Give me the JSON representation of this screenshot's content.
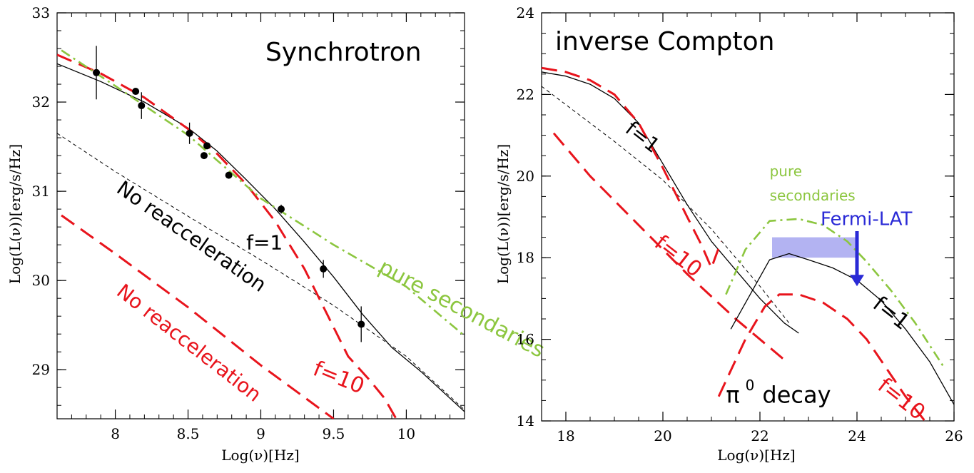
{
  "colors": {
    "black": "#000000",
    "red": "#e8141c",
    "green": "#8cc63f",
    "blue": "#2a2ad6",
    "band": "#b3b3f2"
  },
  "chart_data": [
    {
      "type": "line",
      "title": "Synchrotron",
      "xlabel": "Log(ν)[Hz]",
      "ylabel": "Log(L(ν))[erg/s/Hz]",
      "xlim": [
        7.6,
        10.4
      ],
      "ylim": [
        28.45,
        33.0
      ],
      "xticks": [
        "8",
        "8.5",
        "9",
        "9.5",
        "10"
      ],
      "yticks": [
        "29",
        "30",
        "31",
        "32",
        "33"
      ],
      "grid": false,
      "series": [
        {
          "name": "",
          "style": "solid",
          "color": "black",
          "x": [
            7.6,
            7.9,
            8.2,
            8.5,
            8.7,
            8.9,
            9.1,
            9.3,
            9.5,
            9.7,
            9.9,
            10.1,
            10.4
          ],
          "y": [
            32.43,
            32.23,
            32.0,
            31.71,
            31.45,
            31.13,
            30.8,
            30.43,
            30.04,
            29.62,
            29.25,
            28.98,
            28.53
          ]
        },
        {
          "name": "",
          "style": "short-dash",
          "color": "black",
          "x": [
            7.6,
            8.0,
            8.5,
            9.0,
            9.5,
            10.0,
            10.4
          ],
          "y": [
            31.65,
            31.22,
            30.72,
            30.23,
            29.72,
            29.15,
            28.55
          ]
        },
        {
          "name": "",
          "style": "long-dash",
          "color": "red",
          "x": [
            7.6,
            7.9,
            8.2,
            8.5,
            8.7,
            8.9,
            9.1,
            9.3,
            9.45,
            9.6,
            9.75,
            9.85,
            9.93
          ],
          "y": [
            32.53,
            32.32,
            32.05,
            31.7,
            31.42,
            31.08,
            30.66,
            30.13,
            29.64,
            29.15,
            28.88,
            28.68,
            28.45
          ]
        },
        {
          "name": "",
          "style": "long-dash",
          "color": "red",
          "x": [
            7.63,
            8.0,
            8.5,
            9.0,
            9.5
          ],
          "y": [
            30.73,
            30.3,
            29.7,
            29.05,
            28.45
          ]
        },
        {
          "name": "",
          "style": "dash-dot",
          "color": "green",
          "x": [
            7.63,
            8.0,
            8.5,
            9.0,
            9.5,
            10.0,
            10.4
          ],
          "y": [
            32.58,
            32.18,
            31.63,
            30.92,
            30.4,
            29.93,
            29.38
          ]
        }
      ],
      "data_points": {
        "x": [
          7.87,
          8.14,
          8.18,
          8.51,
          8.61,
          8.63,
          8.78,
          9.14,
          9.43,
          9.69
        ],
        "y": [
          32.33,
          32.12,
          31.96,
          31.65,
          31.4,
          31.51,
          31.18,
          30.8,
          30.13,
          29.51
        ],
        "yerr": [
          0.3,
          0.0,
          0.15,
          0.12,
          0.0,
          0.0,
          0.0,
          0.05,
          0.1,
          0.2
        ]
      },
      "annotations": [
        {
          "text": "No reacceleration",
          "color": "black",
          "x": 8.0,
          "y": 31.0
        },
        {
          "text": "f=1",
          "color": "black",
          "x": 8.9,
          "y": 30.35
        },
        {
          "text": "pure secondaries",
          "color": "green",
          "x": 9.8,
          "y": 30.1
        },
        {
          "text": "No reacceleration",
          "color": "red",
          "x": 8.0,
          "y": 29.85
        },
        {
          "text": "f=10",
          "color": "red",
          "x": 9.35,
          "y": 28.95
        }
      ]
    },
    {
      "type": "line",
      "title": "inverse Compton",
      "xlabel": "Log(ν)[Hz]",
      "ylabel": "Log(L(ν))[erg/s/Hz]",
      "xlim": [
        17.5,
        26.0
      ],
      "ylim": [
        14.0,
        24.0
      ],
      "xticks": [
        "18",
        "20",
        "22",
        "24",
        "26"
      ],
      "yticks": [
        "14",
        "16",
        "18",
        "20",
        "22",
        "24"
      ],
      "grid": false,
      "series": [
        {
          "name": "",
          "style": "solid",
          "color": "black",
          "x": [
            17.5,
            18.0,
            18.5,
            19.0,
            19.5,
            20.0,
            20.5,
            21.0,
            21.5,
            22.0,
            22.5,
            22.8
          ],
          "y": [
            22.55,
            22.45,
            22.25,
            21.9,
            21.3,
            20.3,
            19.3,
            18.4,
            17.7,
            17.0,
            16.4,
            16.15
          ]
        },
        {
          "name": "",
          "style": "short-dash",
          "color": "black",
          "x": [
            17.5,
            19.0,
            20.0,
            21.0,
            22.0,
            22.6
          ],
          "y": [
            22.2,
            20.85,
            19.9,
            18.7,
            17.3,
            16.4
          ]
        },
        {
          "name": "",
          "style": "long-dash",
          "color": "red",
          "x": [
            17.5,
            18.0,
            18.5,
            19.0,
            19.5,
            20.0,
            20.5,
            20.8,
            21.0,
            21.2
          ],
          "y": [
            22.65,
            22.55,
            22.35,
            22.0,
            21.3,
            20.2,
            19.0,
            18.3,
            17.75,
            18.4
          ]
        },
        {
          "name": "",
          "style": "long-dash",
          "color": "red",
          "x": [
            17.75,
            18.5,
            19.5,
            20.5,
            21.5,
            22.5
          ],
          "y": [
            21.05,
            20.0,
            18.8,
            17.6,
            16.5,
            15.5
          ]
        },
        {
          "name": "",
          "style": "solid",
          "color": "black",
          "x": [
            21.4,
            21.8,
            22.2,
            22.6,
            23.0,
            23.5,
            24.0,
            24.5,
            25.0,
            25.5,
            26.0
          ],
          "y": [
            16.25,
            17.1,
            17.95,
            18.1,
            17.95,
            17.75,
            17.45,
            16.95,
            16.25,
            15.45,
            14.4
          ]
        },
        {
          "name": "",
          "style": "long-dash",
          "color": "red",
          "x": [
            21.15,
            21.7,
            22.1,
            22.4,
            22.8,
            23.3,
            23.8,
            24.2,
            24.6,
            25.0,
            25.4
          ],
          "y": [
            14.6,
            16.0,
            16.8,
            17.1,
            17.1,
            16.9,
            16.5,
            16.0,
            15.3,
            14.6,
            14.0
          ]
        },
        {
          "name": "",
          "style": "dash-dot",
          "color": "green",
          "x": [
            21.3,
            21.7,
            22.2,
            22.8,
            23.3,
            23.8,
            24.2,
            24.7,
            25.2,
            25.8
          ],
          "y": [
            17.1,
            18.2,
            18.9,
            18.95,
            18.8,
            18.4,
            17.9,
            17.2,
            16.4,
            15.3
          ]
        }
      ],
      "shaded_band": {
        "x": [
          22.25,
          24.0
        ],
        "y": [
          18.0,
          18.5
        ]
      },
      "upper_limit_arrow": {
        "x": 24.0,
        "y_from": 18.65,
        "y_to": 17.3
      },
      "annotations": [
        {
          "text": "f=1",
          "color": "black",
          "x": 19.2,
          "y": 21.1
        },
        {
          "text": "pure",
          "color": "green",
          "x": 22.2,
          "y": 20.0
        },
        {
          "text": "secondaries",
          "color": "green",
          "x": 22.2,
          "y": 19.4
        },
        {
          "text": "Fermi-LAT",
          "color": "blue",
          "x": 23.25,
          "y": 18.8
        },
        {
          "text": "f=10",
          "color": "red",
          "x": 19.8,
          "y": 18.3
        },
        {
          "text": "f=1",
          "color": "black",
          "x": 24.3,
          "y": 16.8
        },
        {
          "text": "π",
          "color": "black",
          "x": 21.3,
          "y": 14.45
        },
        {
          "text": "0",
          "color": "black",
          "x": 21.7,
          "y": 14.75
        },
        {
          "text": "decay",
          "color": "black",
          "x": 22.05,
          "y": 14.45
        },
        {
          "text": "f=10",
          "color": "red",
          "x": 24.4,
          "y": 14.8
        }
      ]
    }
  ]
}
